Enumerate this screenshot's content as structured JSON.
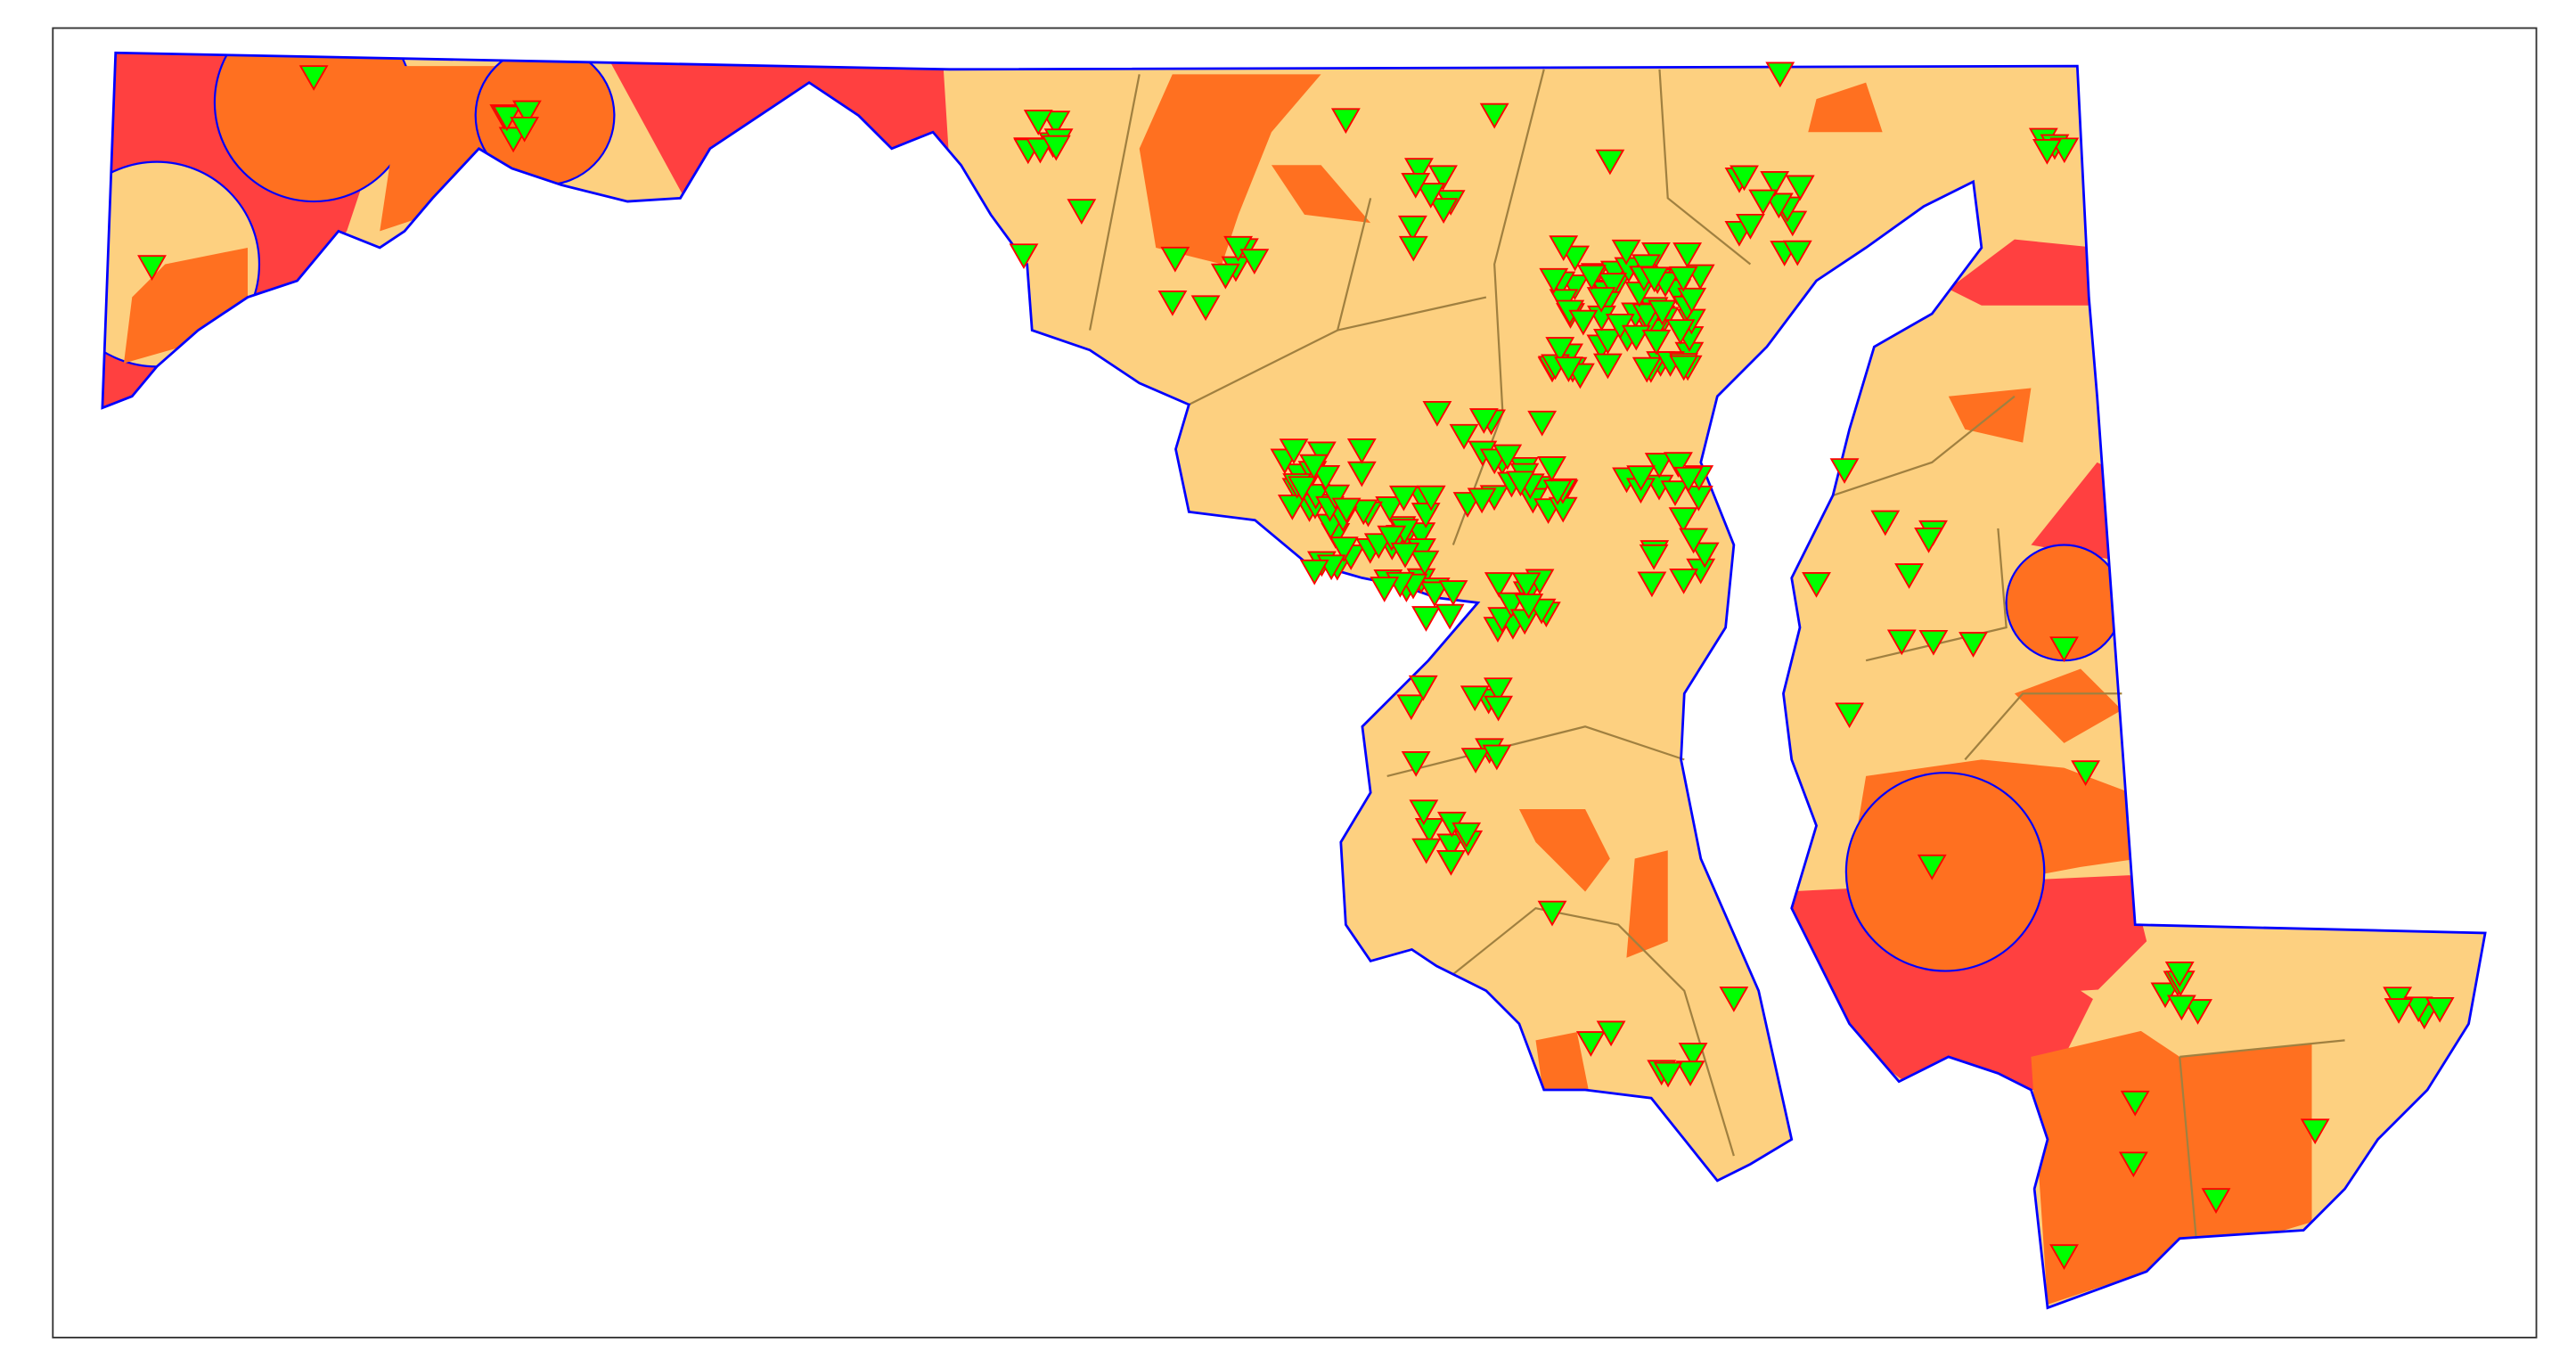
{
  "map": {
    "region": "Maryland",
    "colors": {
      "base_fill": "#FDD080",
      "high_fill": "#FF7020",
      "highest_fill": "#FF4040",
      "state_outline": "#0000FF",
      "county_lines": "#A08040",
      "marker_fill": "#00FF00",
      "marker_stroke": "#FF0000",
      "frame": "#333333"
    },
    "marker_icon": "triangle-down-icon"
  }
}
